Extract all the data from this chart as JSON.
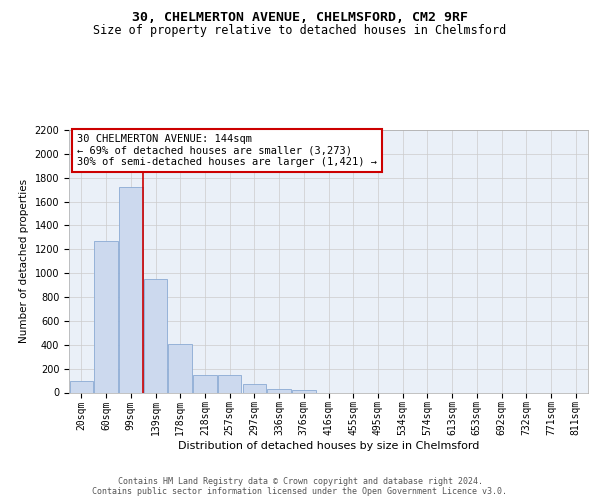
{
  "title": "30, CHELMERTON AVENUE, CHELMSFORD, CM2 9RF",
  "subtitle": "Size of property relative to detached houses in Chelmsford",
  "xlabel": "Distribution of detached houses by size in Chelmsford",
  "ylabel": "Number of detached properties",
  "categories": [
    "20sqm",
    "60sqm",
    "99sqm",
    "139sqm",
    "178sqm",
    "218sqm",
    "257sqm",
    "297sqm",
    "336sqm",
    "376sqm",
    "416sqm",
    "455sqm",
    "495sqm",
    "534sqm",
    "574sqm",
    "613sqm",
    "653sqm",
    "692sqm",
    "732sqm",
    "771sqm",
    "811sqm"
  ],
  "values": [
    100,
    1270,
    1720,
    950,
    410,
    150,
    150,
    70,
    30,
    20,
    0,
    0,
    0,
    0,
    0,
    0,
    0,
    0,
    0,
    0,
    0
  ],
  "bar_color": "#ccd9ee",
  "bar_edge_color": "#8aaad4",
  "vline_position": 2.5,
  "vline_color": "#cc0000",
  "annotation_line1": "30 CHELMERTON AVENUE: 144sqm",
  "annotation_line2": "← 69% of detached houses are smaller (3,273)",
  "annotation_line3": "30% of semi-detached houses are larger (1,421) →",
  "annotation_box_facecolor": "#ffffff",
  "annotation_box_edgecolor": "#cc0000",
  "ylim": [
    0,
    2200
  ],
  "yticks": [
    0,
    200,
    400,
    600,
    800,
    1000,
    1200,
    1400,
    1600,
    1800,
    2000,
    2200
  ],
  "grid_color": "#cccccc",
  "plot_bg_color": "#eaf0f8",
  "footer_line1": "Contains HM Land Registry data © Crown copyright and database right 2024.",
  "footer_line2": "Contains public sector information licensed under the Open Government Licence v3.0.",
  "title_fontsize": 9.5,
  "subtitle_fontsize": 8.5,
  "xlabel_fontsize": 8,
  "ylabel_fontsize": 7.5,
  "tick_fontsize": 7,
  "annotation_fontsize": 7.5,
  "footer_fontsize": 6
}
